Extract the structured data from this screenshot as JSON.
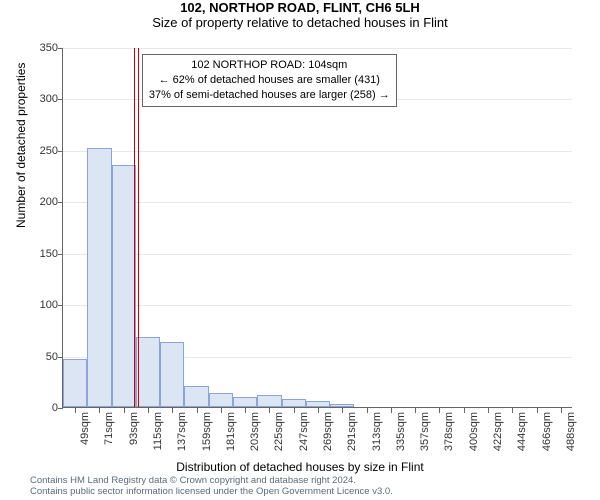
{
  "title": "102, NORTHOP ROAD, FLINT, CH6 5LH",
  "subtitle": "Size of property relative to detached houses in Flint",
  "y_axis_title": "Number of detached properties",
  "x_axis_title": "Distribution of detached houses by size in Flint",
  "info_box": {
    "line1": "102 NORTHOP ROAD: 104sqm",
    "line2": "← 62% of detached houses are smaller (431)",
    "line3": "37% of semi-detached houses are larger (258) →"
  },
  "footer_line1": "Contains HM Land Registry data © Crown copyright and database right 2024.",
  "footer_line2": "Contains public sector information licensed under the Open Government Licence v3.0.",
  "chart": {
    "type": "histogram",
    "ylim": [
      0,
      350
    ],
    "ytick_step": 50,
    "background_color": "#ffffff",
    "grid_color": "#e8e8e8",
    "axis_color": "#666666",
    "bar_fill": "#dbe5f4",
    "bar_stroke": "#8aa5d6",
    "marker_color": "#cc0000",
    "marker_width": 1,
    "bar_width_ratio": 1.0,
    "categories": [
      "49sqm",
      "71sqm",
      "93sqm",
      "115sqm",
      "137sqm",
      "159sqm",
      "181sqm",
      "203sqm",
      "225sqm",
      "247sqm",
      "269sqm",
      "291sqm",
      "313sqm",
      "335sqm",
      "357sqm",
      "378sqm",
      "400sqm",
      "422sqm",
      "444sqm",
      "466sqm",
      "488sqm"
    ],
    "values": [
      47,
      252,
      235,
      68,
      63,
      20,
      14,
      10,
      12,
      8,
      6,
      3,
      0,
      0,
      0,
      0,
      0,
      0,
      0,
      0,
      0
    ],
    "marker_between_index": [
      2,
      3
    ],
    "title_fontsize": 13,
    "label_fontsize": 12,
    "tick_fontsize": 11
  }
}
